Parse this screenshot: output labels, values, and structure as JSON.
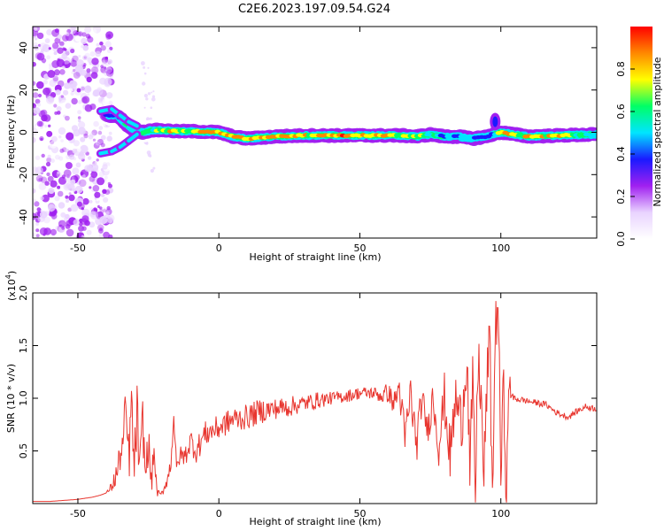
{
  "title": "C2E6.2023.197.09.54.G24",
  "colors": {
    "snr_line": "#e8362f",
    "frame": "#000000",
    "background": "#ffffff"
  },
  "chart_data": [
    {
      "type": "heatmap",
      "xlabel": "Height of straight line (km)",
      "ylabel": "Frequency (Hz)",
      "xlim": [
        -66,
        134
      ],
      "ylim": [
        -50,
        50
      ],
      "xticks": [
        -50,
        0,
        50,
        100
      ],
      "xtick_labels": [
        "-50",
        "0",
        "50",
        "100"
      ],
      "yticks": [
        -40,
        -20,
        0,
        20,
        40
      ],
      "ytick_labels": [
        "-40",
        "-20",
        "0",
        "20",
        "40"
      ],
      "colorbar": {
        "label": "Normalized spectral amplitude",
        "range": [
          0,
          1
        ],
        "ticks": [
          0.0,
          0.2,
          0.4,
          0.6,
          0.8
        ],
        "tick_labels": [
          "0.0",
          "0.2",
          "0.4",
          "0.6",
          "0.8"
        ],
        "colormap": [
          "#ffffff",
          "#e9d3ff",
          "#a020f0",
          "#1a1aff",
          "#00e5ff",
          "#00ff66",
          "#ffff00",
          "#ff8800",
          "#ff0000"
        ]
      },
      "ridge": {
        "x": [
          -40,
          -36,
          -33,
          -30,
          -27,
          -24,
          -20,
          -15,
          -10,
          -5,
          0,
          5,
          10,
          20,
          30,
          40,
          50,
          60,
          65,
          70,
          75,
          80,
          85,
          90,
          95,
          97,
          100,
          105,
          110,
          120,
          134
        ],
        "y": [
          8,
          8,
          4,
          1,
          0,
          1,
          1,
          0.5,
          0.5,
          0.3,
          0,
          -2,
          -3,
          -2,
          -1.5,
          -1.5,
          -1.5,
          -1.5,
          -1.5,
          -2,
          -1,
          -2,
          -2,
          -3,
          -2,
          -1,
          0,
          -1,
          -2,
          -1.5,
          -1
        ],
        "upper_branch_x": [
          -42,
          -38,
          -35,
          -32,
          -29
        ],
        "upper_branch_y": [
          10,
          11,
          8,
          5,
          3
        ],
        "lower_branch_x": [
          -42,
          -38,
          -35,
          -32,
          -29
        ],
        "lower_branch_y": [
          -10,
          -9,
          -7,
          -4,
          -1
        ],
        "amplitude": [
          0.35,
          0.5,
          0.55,
          0.6,
          0.65,
          0.7,
          0.8,
          0.85,
          0.85,
          0.9,
          0.9,
          0.85,
          0.9,
          0.9,
          0.9,
          0.9,
          0.9,
          0.9,
          0.7,
          0.8,
          0.6,
          0.55,
          0.5,
          0.5,
          0.45,
          0.35,
          0.9,
          0.8,
          0.85,
          0.85,
          0.5
        ]
      },
      "noise_region_x": [
        -66,
        -40
      ],
      "noise_region_amplitude": [
        0.05,
        0.3
      ]
    },
    {
      "type": "line",
      "xlabel": "Height of straight line (km)",
      "ylabel": "SNR (10 * v/v)",
      "scale_label": "(x10^4)",
      "scale_base": "(x10",
      "scale_exponent": "4",
      "xlim": [
        -66,
        134
      ],
      "ylim": [
        0,
        2.0
      ],
      "xticks": [
        -50,
        0,
        50,
        100
      ],
      "xtick_labels": [
        "-50",
        "0",
        "50",
        "100"
      ],
      "yticks": [
        0.5,
        1.0,
        1.5,
        2.0
      ],
      "ytick_labels": [
        "0.5",
        "1.0",
        "1.5",
        "2.0"
      ],
      "series": [
        {
          "x": [
            -66,
            -60,
            -55,
            -50,
            -45,
            -42,
            -40,
            -38,
            -36,
            -35,
            -34,
            -33,
            -32,
            -31,
            -30,
            -29,
            -28,
            -27,
            -26,
            -25,
            -24,
            -23,
            -22,
            -21,
            -20,
            -19,
            -18,
            -17,
            -16,
            -15,
            -14,
            -12,
            -10,
            -8,
            -5,
            0,
            5,
            10,
            15,
            20,
            25,
            30,
            35,
            40,
            45,
            50,
            55,
            58,
            60,
            62,
            64,
            66,
            68,
            70,
            72,
            74,
            76,
            78,
            80,
            82,
            84,
            86,
            88,
            89,
            90,
            91,
            92,
            93,
            94,
            95,
            96,
            97,
            98,
            99,
            100,
            101,
            102,
            103,
            104,
            105,
            108,
            112,
            116,
            120,
            124,
            126,
            130,
            134
          ],
          "y": [
            0.02,
            0.02,
            0.03,
            0.04,
            0.06,
            0.08,
            0.1,
            0.16,
            0.3,
            0.45,
            0.55,
            0.9,
            0.4,
            0.92,
            0.3,
            0.88,
            0.22,
            0.8,
            0.25,
            0.6,
            0.18,
            0.5,
            0.12,
            0.08,
            0.1,
            0.18,
            0.25,
            0.4,
            0.85,
            0.3,
            0.45,
            0.45,
            0.6,
            0.5,
            0.66,
            0.72,
            0.8,
            0.82,
            0.88,
            0.9,
            0.92,
            0.95,
            0.98,
            1.0,
            1.02,
            1.05,
            1.05,
            1.02,
            1.06,
            0.95,
            1.1,
            0.6,
            1.05,
            0.55,
            1.0,
            0.7,
            1.02,
            0.55,
            1.0,
            0.45,
            1.0,
            0.75,
            1.45,
            0.3,
            1.1,
            0.08,
            1.4,
            1.0,
            0.2,
            1.1,
            1.6,
            0.05,
            1.55,
            2.0,
            0.3,
            1.1,
            0.05,
            1.2,
            1.0,
            1.0,
            0.98,
            0.96,
            0.94,
            0.86,
            0.82,
            0.86,
            0.92,
            0.9
          ],
          "noise_amplitude": [
            0,
            0,
            0,
            0,
            0,
            0,
            0,
            0.05,
            0.15,
            0.15,
            0.2,
            0.25,
            0.3,
            0.3,
            0.3,
            0.3,
            0.3,
            0.25,
            0.2,
            0.2,
            0.15,
            0.1,
            0.05,
            0.03,
            0.03,
            0.05,
            0.08,
            0.1,
            0.1,
            0.1,
            0.1,
            0.1,
            0.12,
            0.12,
            0.12,
            0.12,
            0.12,
            0.12,
            0.12,
            0.1,
            0.1,
            0.08,
            0.08,
            0.06,
            0.06,
            0.06,
            0.06,
            0.08,
            0.1,
            0.1,
            0.15,
            0.2,
            0.2,
            0.2,
            0.15,
            0.15,
            0.2,
            0.2,
            0.25,
            0.25,
            0.25,
            0.3,
            0.3,
            0.3,
            0.3,
            0.3,
            0.3,
            0.3,
            0.3,
            0.3,
            0.3,
            0.3,
            0.3,
            0.3,
            0.3,
            0.3,
            0.3,
            0.2,
            0.05,
            0.04,
            0.03,
            0.03,
            0.03,
            0.03,
            0.03,
            0.03,
            0.03,
            0.03
          ]
        }
      ]
    }
  ]
}
